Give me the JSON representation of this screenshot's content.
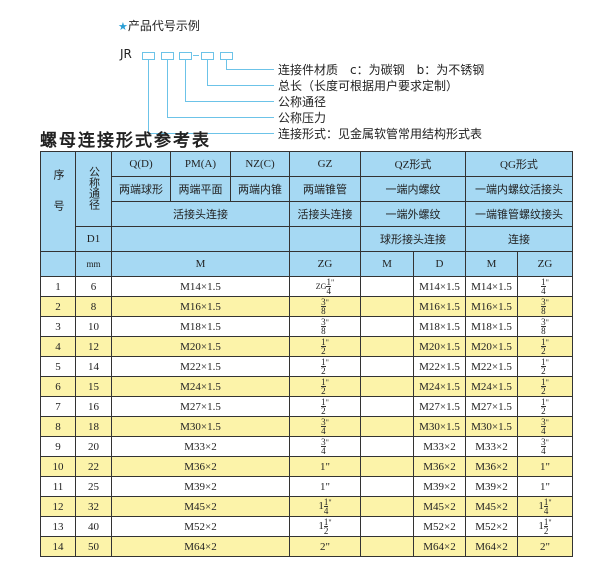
{
  "example": {
    "star": "★",
    "title": "产品代号示例",
    "code": "JR",
    "dash": "-",
    "labels": [
      "连接件材质　c：为碳钢　b：为不锈钢",
      "总长（长度可根据用户要求定制）",
      "公称通径",
      "公称压力",
      "连接形式：见金属软管常用结构形式表"
    ]
  },
  "table_title": "螺母连接形式参考表",
  "header": {
    "seq": "序号",
    "dn": "公称通径",
    "d1": "D1",
    "mm": "mm",
    "q": "Q(D)",
    "pm": "PM(A)",
    "nz": "NZ(C)",
    "gz": "GZ",
    "qz": "QZ形式",
    "qg": "QG形式",
    "q_desc": "两端球形",
    "pm_desc": "两端平面",
    "nz_desc": "两端内锥",
    "gz_desc": "两端锥管",
    "qz_desc": "一端内螺纹",
    "qg_desc": "一端内螺纹活接头",
    "union": "活接头连接",
    "gz_union": "活接头连接",
    "qz_ext": "一端外螺纹",
    "qg_cone": "一端锥管螺纹接头",
    "qz_ball": "球形接头连接",
    "qg_conn": "连接",
    "m": "M",
    "zg": "ZG",
    "qz_m": "M",
    "qz_d": "D",
    "qg_m": "M",
    "qg_zg": "ZG"
  },
  "rows": [
    {
      "n": "1",
      "d1": "6",
      "m": "M14×1.5",
      "zg": {
        "pre": "ZG",
        "w": "",
        "num": "1",
        "den": "4",
        "q": "\""
      },
      "qzd": "M14×1.5",
      "qgm": "M14×1.5",
      "qgzg": {
        "w": "",
        "num": "1",
        "den": "4",
        "q": "\""
      }
    },
    {
      "n": "2",
      "d1": "8",
      "m": "M16×1.5",
      "zg": {
        "pre": "",
        "w": "",
        "num": "3",
        "den": "8",
        "q": "\""
      },
      "qzd": "M16×1.5",
      "qgm": "M16×1.5",
      "qgzg": {
        "w": "",
        "num": "3",
        "den": "8",
        "q": "\""
      }
    },
    {
      "n": "3",
      "d1": "10",
      "m": "M18×1.5",
      "zg": {
        "pre": "",
        "w": "",
        "num": "3",
        "den": "8",
        "q": "\""
      },
      "qzd": "M18×1.5",
      "qgm": "M18×1.5",
      "qgzg": {
        "w": "",
        "num": "3",
        "den": "8",
        "q": "\""
      }
    },
    {
      "n": "4",
      "d1": "12",
      "m": "M20×1.5",
      "zg": {
        "pre": "",
        "w": "",
        "num": "1",
        "den": "2",
        "q": "\""
      },
      "qzd": "M20×1.5",
      "qgm": "M20×1.5",
      "qgzg": {
        "w": "",
        "num": "1",
        "den": "2",
        "q": "\""
      }
    },
    {
      "n": "5",
      "d1": "14",
      "m": "M22×1.5",
      "zg": {
        "pre": "",
        "w": "",
        "num": "1",
        "den": "2",
        "q": "\""
      },
      "qzd": "M22×1.5",
      "qgm": "M22×1.5",
      "qgzg": {
        "w": "",
        "num": "1",
        "den": "2",
        "q": "\""
      }
    },
    {
      "n": "6",
      "d1": "15",
      "m": "M24×1.5",
      "zg": {
        "pre": "",
        "w": "",
        "num": "1",
        "den": "2",
        "q": "\""
      },
      "qzd": "M24×1.5",
      "qgm": "M24×1.5",
      "qgzg": {
        "w": "",
        "num": "1",
        "den": "2",
        "q": "\""
      }
    },
    {
      "n": "7",
      "d1": "16",
      "m": "M27×1.5",
      "zg": {
        "pre": "",
        "w": "",
        "num": "1",
        "den": "2",
        "q": "\""
      },
      "qzd": "M27×1.5",
      "qgm": "M27×1.5",
      "qgzg": {
        "w": "",
        "num": "1",
        "den": "2",
        "q": "\""
      }
    },
    {
      "n": "8",
      "d1": "18",
      "m": "M30×1.5",
      "zg": {
        "pre": "",
        "w": "",
        "num": "3",
        "den": "4",
        "q": "\""
      },
      "qzd": "M30×1.5",
      "qgm": "M30×1.5",
      "qgzg": {
        "w": "",
        "num": "3",
        "den": "4",
        "q": "\""
      }
    },
    {
      "n": "9",
      "d1": "20",
      "m": "M33×2",
      "zg": {
        "pre": "",
        "w": "",
        "num": "3",
        "den": "4",
        "q": "\""
      },
      "qzd": "M33×2",
      "qgm": "M33×2",
      "qgzg": {
        "w": "",
        "num": "3",
        "den": "4",
        "q": "\""
      }
    },
    {
      "n": "10",
      "d1": "22",
      "m": "M36×2",
      "zg": {
        "pre": "",
        "w": "1\"",
        "num": "",
        "den": "",
        "q": ""
      },
      "qzd": "M36×2",
      "qgm": "M36×2",
      "qgzg": {
        "w": "1\"",
        "num": "",
        "den": "",
        "q": ""
      }
    },
    {
      "n": "11",
      "d1": "25",
      "m": "M39×2",
      "zg": {
        "pre": "",
        "w": "1\"",
        "num": "",
        "den": "",
        "q": ""
      },
      "qzd": "M39×2",
      "qgm": "M39×2",
      "qgzg": {
        "w": "1\"",
        "num": "",
        "den": "",
        "q": ""
      }
    },
    {
      "n": "12",
      "d1": "32",
      "m": "M45×2",
      "zg": {
        "pre": "",
        "w": "1",
        "num": "1",
        "den": "4",
        "q": "\""
      },
      "qzd": "M45×2",
      "qgm": "M45×2",
      "qgzg": {
        "w": "1",
        "num": "1",
        "den": "4",
        "q": "\""
      }
    },
    {
      "n": "13",
      "d1": "40",
      "m": "M52×2",
      "zg": {
        "pre": "",
        "w": "1",
        "num": "1",
        "den": "2",
        "q": "\""
      },
      "qzd": "M52×2",
      "qgm": "M52×2",
      "qgzg": {
        "w": "1",
        "num": "1",
        "den": "2",
        "q": "\""
      }
    },
    {
      "n": "14",
      "d1": "50",
      "m": "M64×2",
      "zg": {
        "pre": "",
        "w": "2\"",
        "num": "",
        "den": "",
        "q": ""
      },
      "qzd": "M64×2",
      "qgm": "M64×2",
      "qgzg": {
        "w": "2\"",
        "num": "",
        "den": "",
        "q": ""
      }
    }
  ]
}
